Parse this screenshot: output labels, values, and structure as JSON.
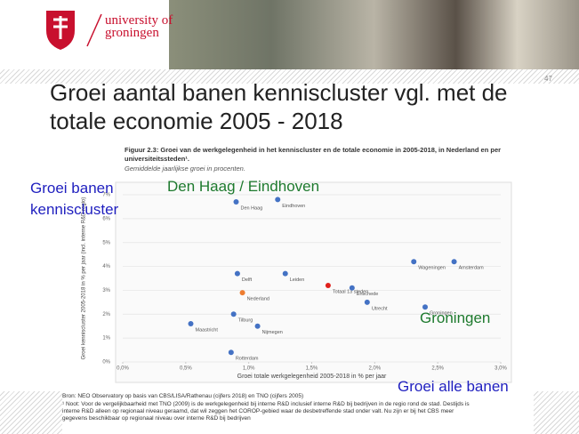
{
  "header": {
    "logo_line1": "university of",
    "logo_line2": "groningen",
    "page_number": "47"
  },
  "slide_title": "Groei aantal banen kenniscluster vgl. met de totale economie 2005 - 2018",
  "figure_caption": "Figuur 2.3: Groei van de werkgelegenheid in het kenniscluster en de totale economie in 2005-2018, in Nederland en per universiteitssteden¹.",
  "figure_subcaption": "Gemiddelde jaarlijkse groei in procenten.",
  "annotations": [
    "Groei banen kenniscluster",
    "Den Haag / Eindhoven",
    "Groningen",
    "Groei alle banen"
  ],
  "source": "Bron: NEO Observatory op basis van CBS/LISA/Rathenau (cijfers 2018) en TNO (cijfers 2005)",
  "note": "¹ Noot: Voor de vergelijkbaarheid met TNO (2009) is de werkgelegenheid bij interne R&D inclusief interne R&D bij bedrijven in de regio rond de stad. Destijds is interne R&D alleen op regionaal niveau geraamd, dat wil zeggen het COROP-gebied waar de desbetreffende stad onder valt. Nu zijn er bij het CBS meer gegevens beschikbaar op regionaal niveau over interne R&D bij bedrijven",
  "chart_data": {
    "type": "scatter",
    "x_label": "Groei totale werkgelegenheid 2005-2018 in % per jaar",
    "y_label": "Groei kenniscluster 2005-2018 in % per jaar (incl. interne R&D regio)",
    "labels": [
      "Den Haag",
      "Eindhoven",
      "Wageningen",
      "Amsterdam",
      "Delft",
      "Leiden",
      "Totaal 13 steden",
      "Nederland",
      "Enschede",
      "Utrecht",
      "Groningen",
      "Tilburg",
      "Maastricht",
      "Nijmegen",
      "Rotterdam"
    ],
    "x": [
      0.9,
      1.23,
      2.31,
      2.63,
      0.91,
      1.29,
      1.63,
      0.95,
      1.82,
      1.94,
      2.4,
      0.88,
      0.54,
      1.07,
      0.86
    ],
    "values": [
      6.7,
      6.8,
      4.2,
      4.2,
      3.7,
      3.7,
      3.2,
      2.9,
      3.1,
      2.5,
      2.3,
      2.0,
      1.6,
      1.5,
      0.4
    ],
    "colors": [
      "#4472c4",
      "#4472c4",
      "#4472c4",
      "#4472c4",
      "#4472c4",
      "#4472c4",
      "#e0201b",
      "#ed7d31",
      "#4472c4",
      "#4472c4",
      "#4472c4",
      "#4472c4",
      "#4472c4",
      "#4472c4",
      "#4472c4"
    ],
    "xlim": [
      0,
      3
    ],
    "xticks": [
      {
        "value": 0,
        "label": "0,0%"
      },
      {
        "value": 0.5,
        "label": "0,5%"
      },
      {
        "value": 1,
        "label": "1,0%"
      },
      {
        "value": 1.5,
        "label": "1,5%"
      },
      {
        "value": 2,
        "label": "2,0%"
      },
      {
        "value": 2.5,
        "label": "2,5%"
      },
      {
        "value": 3,
        "label": "3,0%"
      }
    ],
    "ylim": [
      0,
      7
    ],
    "yticks": [
      {
        "value": 0,
        "label": "0%"
      },
      {
        "value": 1,
        "label": "1%"
      },
      {
        "value": 2,
        "label": "2%"
      },
      {
        "value": 3,
        "label": "3%"
      },
      {
        "value": 4,
        "label": "4%"
      },
      {
        "value": 5,
        "label": "5%"
      },
      {
        "value": 6,
        "label": "6%"
      },
      {
        "value": 7,
        "label": "7%"
      }
    ],
    "grid": true
  }
}
